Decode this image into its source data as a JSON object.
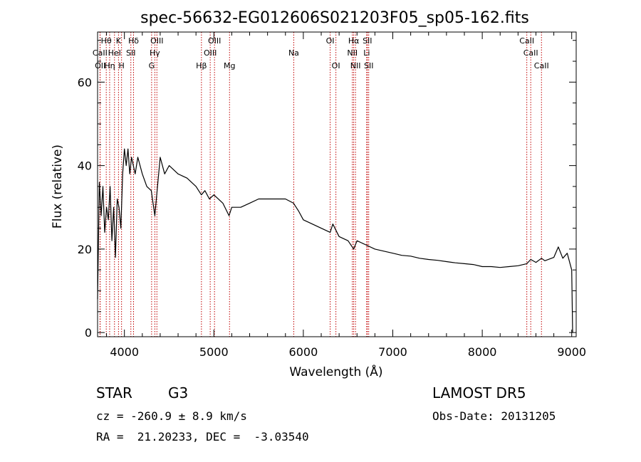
{
  "chart_data": {
    "type": "line",
    "title": "spec-56632-EG012606S021203F05_sp05-162.fits",
    "xlabel": "Wavelength (Å)",
    "ylabel": "Flux (relative)",
    "xlim": [
      3700,
      9050
    ],
    "ylim": [
      -1,
      72
    ],
    "x_ticks": [
      4000,
      5000,
      6000,
      7000,
      8000,
      9000
    ],
    "x_tick_labels": [
      "4000",
      "5000",
      "6000",
      "7000",
      "8000",
      "9000"
    ],
    "y_ticks": [
      0,
      20,
      40,
      60
    ],
    "y_tick_labels": [
      "0",
      "20",
      "40",
      "60"
    ],
    "grid": false,
    "series": [
      {
        "color": "#000000",
        "x": [
          3700,
          3720,
          3740,
          3760,
          3780,
          3800,
          3820,
          3840,
          3860,
          3880,
          3900,
          3920,
          3940,
          3960,
          3980,
          4000,
          4020,
          4040,
          4060,
          4080,
          4100,
          4120,
          4150,
          4200,
          4250,
          4300,
          4340,
          4400,
          4450,
          4500,
          4600,
          4700,
          4800,
          4860,
          4900,
          4950,
          5000,
          5100,
          5170,
          5200,
          5300,
          5400,
          5500,
          5600,
          5700,
          5800,
          5890,
          5950,
          6000,
          6100,
          6200,
          6300,
          6330,
          6400,
          6500,
          6563,
          6600,
          6700,
          6800,
          6900,
          7000,
          7100,
          7200,
          7300,
          7400,
          7500,
          7600,
          7700,
          7800,
          7900,
          8000,
          8100,
          8200,
          8300,
          8400,
          8498,
          8542,
          8600,
          8662,
          8700,
          8800,
          8850,
          8900,
          8950,
          9000,
          9010
        ],
        "y": [
          8,
          36,
          28,
          35,
          24,
          30,
          27,
          35,
          22,
          30,
          18,
          32,
          30,
          25,
          38,
          44,
          40,
          44,
          38,
          42,
          40,
          38,
          42,
          38,
          35,
          34,
          28,
          42,
          38,
          40,
          38,
          37,
          35,
          33,
          34,
          32,
          33,
          31,
          28,
          30,
          30,
          31,
          32,
          32,
          32,
          32,
          31,
          29,
          27,
          26,
          25,
          24,
          26,
          23,
          22,
          20,
          22,
          21,
          20,
          19.5,
          19,
          18.5,
          18.3,
          17.8,
          17.5,
          17.3,
          17.0,
          16.7,
          16.5,
          16.3,
          15.8,
          15.8,
          15.6,
          15.8,
          16.0,
          16.5,
          17.5,
          16.8,
          17.8,
          17.2,
          18.0,
          20.5,
          17.8,
          19.0,
          15.0,
          0
        ]
      }
    ],
    "spectral_lines": [
      {
        "label": "Hθ",
        "x": 3797,
        "row": 0
      },
      {
        "label": "K",
        "x": 3934,
        "row": 0
      },
      {
        "label": "Hδ",
        "x": 4102,
        "row": 0
      },
      {
        "label": "OIII",
        "x": 4363,
        "row": 0
      },
      {
        "label": "OIII",
        "x": 5007,
        "row": 0
      },
      {
        "label": "OI",
        "x": 6300,
        "row": 0
      },
      {
        "label": "Hα",
        "x": 6563,
        "row": 0
      },
      {
        "label": "SII",
        "x": 6716,
        "row": 0
      },
      {
        "label": "CaII",
        "x": 8498,
        "row": 0
      },
      {
        "label": "CaII",
        "x": 3727,
        "row": 1
      },
      {
        "label": "HeI",
        "x": 3889,
        "row": 1
      },
      {
        "label": "SII",
        "x": 4072,
        "row": 1
      },
      {
        "label": "Hγ",
        "x": 4340,
        "row": 1
      },
      {
        "label": "OIII",
        "x": 4959,
        "row": 1
      },
      {
        "label": "NII",
        "x": 6548,
        "row": 1
      },
      {
        "label": "Li",
        "x": 6708,
        "row": 1
      },
      {
        "label": "CaII",
        "x": 8542,
        "row": 1
      },
      {
        "label": "OII",
        "x": 3729,
        "row": 2
      },
      {
        "label": "Hη",
        "x": 3835,
        "row": 2
      },
      {
        "label": "H",
        "x": 3968,
        "row": 2
      },
      {
        "label": "G",
        "x": 4304,
        "row": 2
      },
      {
        "label": "Hβ",
        "x": 4861,
        "row": 2
      },
      {
        "label": "Mg",
        "x": 5175,
        "row": 2
      },
      {
        "label": "Na",
        "x": 5893,
        "row": 1
      },
      {
        "label": "OI",
        "x": 6364,
        "row": 2
      },
      {
        "label": "NII",
        "x": 6583,
        "row": 2
      },
      {
        "label": "SII",
        "x": 6731,
        "row": 2
      },
      {
        "label": "CaII",
        "x": 8662,
        "row": 2
      }
    ],
    "line_color": "#c00000"
  },
  "info": {
    "object_class": "STAR",
    "subclass": "G3",
    "survey": "LAMOST DR5",
    "cz": "cz = -260.9 ± 8.9 km/s",
    "obs_date": "Obs-Date: 20131205",
    "coords": "RA =  21.20233, DEC =  -3.03540"
  }
}
